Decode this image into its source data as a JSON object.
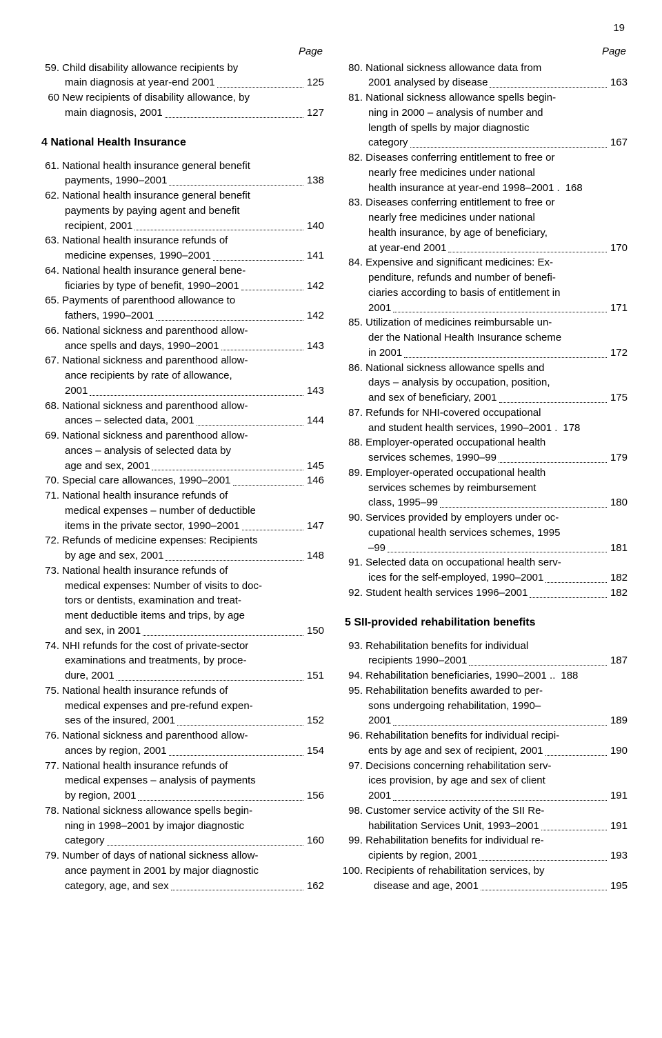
{
  "page_number": "19",
  "page_label": "Page",
  "sections": {
    "s4": "4  National Health Insurance",
    "s5": "5  SII-provided rehabilitation benefits"
  },
  "left": [
    {
      "n": "59.",
      "lines": [
        "Child disability allowance recipients by",
        "main diagnosis at year-end 2001"
      ],
      "p": "125"
    },
    {
      "n": "60",
      "lines": [
        "New recipients of disability allowance, by",
        "main diagnosis, 2001"
      ],
      "p": "127"
    },
    {
      "n": "61.",
      "lines": [
        "National health insurance general benefit",
        "payments, 1990–2001"
      ],
      "p": "138"
    },
    {
      "n": "62.",
      "lines": [
        "National health insurance general benefit",
        "payments by paying agent and benefit",
        "recipient, 2001"
      ],
      "p": "140"
    },
    {
      "n": "63.",
      "lines": [
        "National health insurance refunds of",
        "medicine expenses, 1990–2001"
      ],
      "p": "141"
    },
    {
      "n": "64.",
      "lines": [
        "National health insurance general bene-",
        "ficiaries by type of benefit, 1990–2001"
      ],
      "p": "142"
    },
    {
      "n": "65.",
      "lines": [
        "Payments of parenthood allowance to",
        "fathers, 1990–2001"
      ],
      "p": "142"
    },
    {
      "n": "66.",
      "lines": [
        "National sickness and parenthood allow-",
        "ance spells and days, 1990–2001"
      ],
      "p": "143"
    },
    {
      "n": "67.",
      "lines": [
        "National sickness and parenthood allow-",
        "ance recipients by rate of allowance,",
        "2001"
      ],
      "p": "143"
    },
    {
      "n": "68.",
      "lines": [
        "National sickness and parenthood allow-",
        "ances – selected data, 2001"
      ],
      "p": "144"
    },
    {
      "n": "69.",
      "lines": [
        "National sickness and parenthood allow-",
        "ances – analysis of selected data by",
        "age and sex, 2001"
      ],
      "p": "145"
    },
    {
      "n": "70.",
      "lines": [
        "Special care allowances, 1990–2001"
      ],
      "p": "146"
    },
    {
      "n": "71.",
      "lines": [
        "National health insurance refunds of",
        "medical expenses – number of deductible",
        "items in the private sector, 1990–2001"
      ],
      "p": "147"
    },
    {
      "n": "72.",
      "lines": [
        "Refunds of medicine expenses: Recipients",
        "by age and sex, 2001"
      ],
      "p": "148"
    },
    {
      "n": "73.",
      "lines": [
        "National health insurance refunds of",
        "medical expenses: Number of visits to doc-",
        "tors or dentists, examination and treat-",
        "ment deductible items and trips, by age",
        "and sex, in 2001"
      ],
      "p": "150"
    },
    {
      "n": "74.",
      "lines": [
        "NHI refunds for the cost of private-sector",
        "examinations and treatments, by proce-",
        "dure, 2001"
      ],
      "p": "151"
    },
    {
      "n": "75.",
      "lines": [
        "National health insurance refunds of",
        "medical expenses and pre-refund expen-",
        "ses of the insured, 2001"
      ],
      "p": "152"
    },
    {
      "n": "76.",
      "lines": [
        "National sickness and parenthood allow-",
        "ances by region, 2001"
      ],
      "p": "154"
    },
    {
      "n": "77.",
      "lines": [
        "National health insurance refunds of",
        "medical expenses – analysis of payments",
        "by region, 2001"
      ],
      "p": "156"
    },
    {
      "n": "78.",
      "lines": [
        "National sickness allowance spells begin-",
        "ning in 1998–2001 by imajor diagnostic",
        "category"
      ],
      "p": "160"
    },
    {
      "n": "79.",
      "lines": [
        "Number of days of national sickness allow-",
        "ance payment in 2001 by major diagnostic",
        "category, age, and sex"
      ],
      "p": "162"
    }
  ],
  "right": [
    {
      "n": "80.",
      "lines": [
        "National sickness allowance data from",
        "2001 analysed by disease"
      ],
      "p": "163"
    },
    {
      "n": "81.",
      "lines": [
        "National sickness allowance spells begin-",
        "ning in 2000 – analysis of number and",
        "length of spells by major diagnostic",
        "category"
      ],
      "p": "167"
    },
    {
      "n": "82.",
      "lines": [
        "Diseases conferring entitlement to free or",
        "nearly free medicines under national",
        "health insurance at year-end 1998–2001 ."
      ],
      "p": "168",
      "noleader": true
    },
    {
      "n": "83.",
      "lines": [
        "Diseases conferring entitlement to free or",
        "nearly free medicines under national",
        "health insurance, by age of beneficiary,",
        " at year-end 2001"
      ],
      "p": "170"
    },
    {
      "n": "84.",
      "lines": [
        "Expensive and significant medicines: Ex-",
        "penditure, refunds and number of benefi-",
        "ciaries according to basis of entitlement in",
        "2001"
      ],
      "p": "171"
    },
    {
      "n": "85.",
      "lines": [
        "Utilization of medicines reimbursable un-",
        "der the National Health Insurance scheme",
        "in 2001"
      ],
      "p": "172"
    },
    {
      "n": "86.",
      "lines": [
        "National sickness allowance spells and",
        "days – analysis by occupation, position,",
        "and sex of beneficiary, 2001"
      ],
      "p": "175"
    },
    {
      "n": "87.",
      "lines": [
        "Refunds for NHI-covered occupational",
        "and student health services, 1990–2001 ."
      ],
      "p": "178",
      "noleader": true
    },
    {
      "n": "88.",
      "lines": [
        "Employer-operated occupational health",
        "services schemes, 1990–99"
      ],
      "p": "179"
    },
    {
      "n": "89.",
      "lines": [
        "Employer-operated occupational health",
        "services schemes by reimbursement",
        "class, 1995–99"
      ],
      "p": "180"
    },
    {
      "n": "90.",
      "lines": [
        "Services provided by employers under oc-",
        "cupational health services schemes, 1995",
        "–99"
      ],
      "p": "181"
    },
    {
      "n": "91.",
      "lines": [
        "Selected data on occupational health serv-",
        "ices for the self-employed, 1990–2001"
      ],
      "p": "182"
    },
    {
      "n": "92.",
      "lines": [
        "Student health services 1996–2001"
      ],
      "p": "182"
    },
    {
      "n": "93.",
      "lines": [
        "Rehabilitation benefits for individual",
        "recipients 1990–2001"
      ],
      "p": "187"
    },
    {
      "n": "94.",
      "lines": [
        "Rehabilitation beneficiaries, 1990–2001 .."
      ],
      "p": "188",
      "noleader": true
    },
    {
      "n": "95.",
      "lines": [
        "Rehabilitation benefits awarded to per-",
        "sons undergoing rehabilitation, 1990–",
        "2001"
      ],
      "p": "189"
    },
    {
      "n": "96.",
      "lines": [
        "Rehabilitation benefits for individual recipi-",
        "ents by age and sex of recipient, 2001"
      ],
      "p": "190"
    },
    {
      "n": "97.",
      "lines": [
        "Decisions concerning rehabilitation serv-",
        "ices provision, by age and sex of client",
        "2001"
      ],
      "p": "191"
    },
    {
      "n": "98.",
      "lines": [
        "Customer service activity of the SII Re-",
        "habilitation Services Unit, 1993–2001"
      ],
      "p": "191"
    },
    {
      "n": "99.",
      "lines": [
        "Rehabilitation benefits for individual re-",
        "cipients by region, 2001"
      ],
      "p": "193"
    },
    {
      "n": "100.",
      "lines": [
        "Recipients of rehabilitation services, by",
        "disease and age, 2001"
      ],
      "p": "195",
      "wide": true
    }
  ]
}
